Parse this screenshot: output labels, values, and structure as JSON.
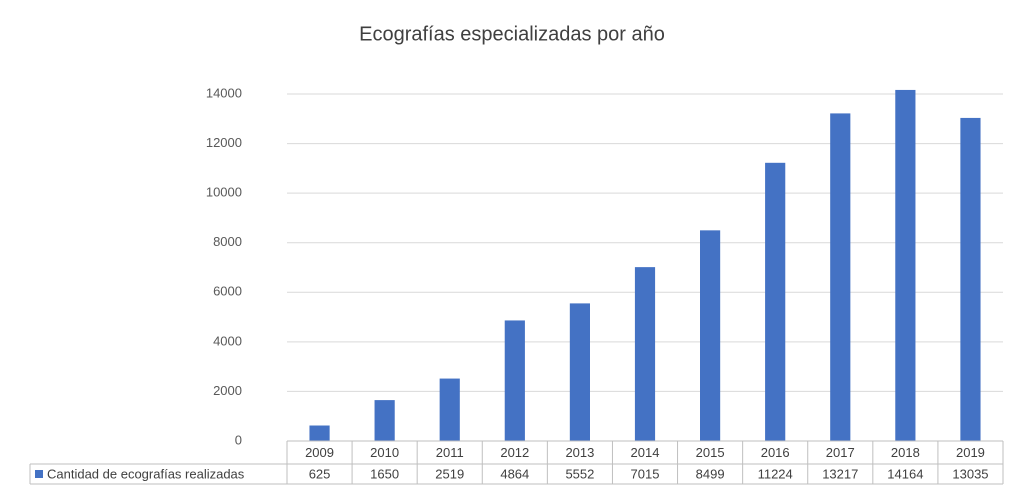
{
  "chart_data": {
    "type": "bar",
    "title": "Ecografías especializadas por año",
    "categories": [
      "2009",
      "2010",
      "2011",
      "2012",
      "2013",
      "2014",
      "2015",
      "2016",
      "2017",
      "2018",
      "2019"
    ],
    "series": [
      {
        "name": "Cantidad de ecografías realizadas",
        "color": "#4472c4",
        "values": [
          625,
          1650,
          2519,
          4864,
          5552,
          7015,
          8499,
          11224,
          13217,
          14164,
          13035
        ]
      }
    ],
    "ylim": [
      0,
      14000
    ],
    "yticks": [
      0,
      2000,
      4000,
      6000,
      8000,
      10000,
      12000,
      14000
    ],
    "grid": true,
    "data_table": true
  }
}
